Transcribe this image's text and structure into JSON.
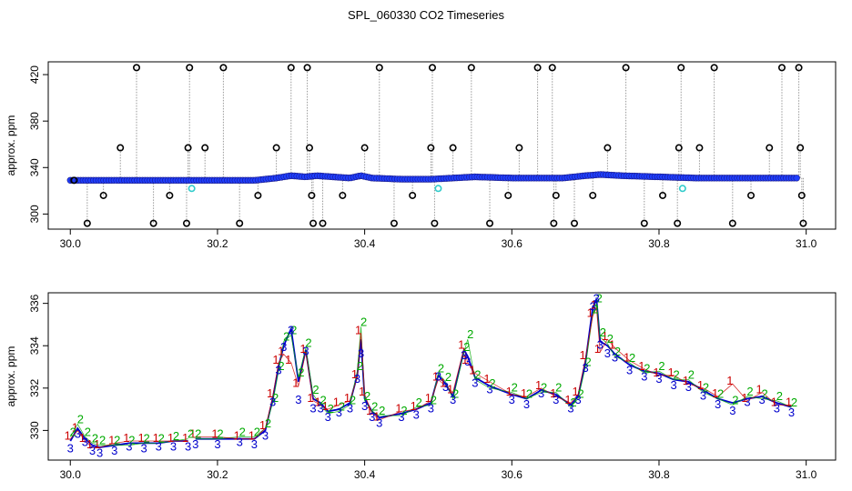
{
  "title": "SPL_060330  CO2 Timeseries",
  "colors": {
    "raw": "#000000",
    "connector": "#999999",
    "fill": "#1f3fff",
    "series1": "#cc0000",
    "series2": "#00aa00",
    "series3": "#0000cc",
    "flag": "#33cccc"
  },
  "chart_data": [
    {
      "type": "scatter",
      "ylabel": "approx. ppm",
      "xlim": [
        29.97,
        31.04
      ],
      "ylim": [
        287,
        431
      ],
      "xticks": [
        "30.0",
        "30.2",
        "30.4",
        "30.6",
        "30.8",
        "31.0"
      ],
      "yticks": [
        "300",
        "340",
        "380",
        "420"
      ],
      "baseline": [
        [
          30.0,
          329
        ],
        [
          30.05,
          329
        ],
        [
          30.1,
          329
        ],
        [
          30.15,
          329
        ],
        [
          30.2,
          329
        ],
        [
          30.25,
          329
        ],
        [
          30.28,
          331
        ],
        [
          30.3,
          333
        ],
        [
          30.32,
          332
        ],
        [
          30.335,
          333
        ],
        [
          30.38,
          331
        ],
        [
          30.395,
          333
        ],
        [
          30.41,
          331
        ],
        [
          30.45,
          330
        ],
        [
          30.49,
          330
        ],
        [
          30.52,
          331
        ],
        [
          30.55,
          332
        ],
        [
          30.6,
          331
        ],
        [
          30.65,
          331
        ],
        [
          30.67,
          331
        ],
        [
          30.7,
          333
        ],
        [
          30.72,
          334
        ],
        [
          30.75,
          333
        ],
        [
          30.8,
          332
        ],
        [
          30.85,
          331
        ],
        [
          30.9,
          331
        ],
        [
          30.95,
          331
        ],
        [
          30.99,
          331
        ]
      ],
      "spikes": [
        [
          30.005,
          329
        ],
        [
          30.023,
          292
        ],
        [
          30.045,
          316
        ],
        [
          30.068,
          357
        ],
        [
          30.09,
          426
        ],
        [
          30.113,
          292
        ],
        [
          30.135,
          316
        ],
        [
          30.158,
          292
        ],
        [
          30.16,
          357
        ],
        [
          30.162,
          426
        ],
        [
          30.183,
          357
        ],
        [
          30.208,
          426
        ],
        [
          30.23,
          292
        ],
        [
          30.255,
          316
        ],
        [
          30.28,
          357
        ],
        [
          30.3,
          426
        ],
        [
          30.322,
          426
        ],
        [
          30.325,
          357
        ],
        [
          30.328,
          316
        ],
        [
          30.33,
          292
        ],
        [
          30.343,
          292
        ],
        [
          30.37,
          316
        ],
        [
          30.4,
          357
        ],
        [
          30.42,
          426
        ],
        [
          30.44,
          292
        ],
        [
          30.465,
          316
        ],
        [
          30.49,
          357
        ],
        [
          30.492,
          426
        ],
        [
          30.495,
          292
        ],
        [
          30.52,
          357
        ],
        [
          30.545,
          426
        ],
        [
          30.57,
          292
        ],
        [
          30.595,
          316
        ],
        [
          30.61,
          357
        ],
        [
          30.635,
          426
        ],
        [
          30.655,
          426
        ],
        [
          30.657,
          292
        ],
        [
          30.66,
          316
        ],
        [
          30.685,
          292
        ],
        [
          30.71,
          316
        ],
        [
          30.73,
          357
        ],
        [
          30.755,
          426
        ],
        [
          30.78,
          292
        ],
        [
          30.805,
          316
        ],
        [
          30.825,
          292
        ],
        [
          30.827,
          357
        ],
        [
          30.83,
          426
        ],
        [
          30.855,
          357
        ],
        [
          30.875,
          426
        ],
        [
          30.9,
          292
        ],
        [
          30.925,
          316
        ],
        [
          30.95,
          357
        ],
        [
          30.967,
          426
        ],
        [
          30.99,
          426
        ],
        [
          30.992,
          357
        ],
        [
          30.994,
          316
        ],
        [
          30.996,
          292
        ]
      ],
      "flags": [
        [
          30.165,
          322
        ],
        [
          30.5,
          322
        ],
        [
          30.832,
          322
        ]
      ]
    },
    {
      "type": "line",
      "ylabel": "approx. ppm",
      "xlim": [
        29.97,
        31.04
      ],
      "ylim": [
        328.6,
        336.5
      ],
      "xticks": [
        "30.0",
        "30.2",
        "30.4",
        "30.6",
        "30.8",
        "31.0"
      ],
      "yticks": [
        "330",
        "332",
        "334",
        "336"
      ],
      "gap": [
        30.165,
        30.168
      ],
      "x": [
        30.0,
        30.01,
        30.02,
        30.03,
        30.04,
        30.06,
        30.08,
        30.1,
        30.12,
        30.14,
        30.16,
        30.17,
        30.2,
        30.23,
        30.25,
        30.265,
        30.275,
        30.283,
        30.29,
        30.3,
        30.31,
        30.32,
        30.33,
        30.34,
        30.35,
        30.365,
        30.38,
        30.39,
        30.395,
        30.4,
        30.41,
        30.42,
        30.45,
        30.47,
        30.49,
        30.5,
        30.51,
        30.52,
        30.535,
        30.54,
        30.55,
        30.57,
        30.6,
        30.62,
        30.64,
        30.66,
        30.68,
        30.69,
        30.7,
        30.71,
        30.715,
        30.72,
        30.73,
        30.74,
        30.76,
        30.78,
        30.8,
        30.82,
        30.84,
        30.86,
        30.88,
        30.9,
        30.92,
        30.94,
        30.96,
        30.98
      ],
      "values": [
        329.5,
        330.1,
        329.6,
        329.3,
        329.2,
        329.3,
        329.4,
        329.4,
        329.4,
        329.5,
        329.5,
        329.6,
        329.6,
        329.6,
        329.6,
        330.0,
        331.5,
        333.0,
        334.0,
        334.8,
        332.3,
        333.8,
        331.5,
        331.3,
        330.9,
        331.0,
        331.3,
        332.6,
        334.3,
        331.5,
        330.9,
        330.6,
        330.8,
        331.0,
        331.3,
        332.6,
        332.2,
        331.6,
        333.8,
        333.5,
        332.5,
        332.1,
        331.7,
        331.5,
        331.9,
        331.7,
        331.2,
        331.6,
        333.2,
        335.8,
        336.2,
        334.2,
        334.0,
        333.6,
        333.1,
        332.8,
        332.7,
        332.4,
        332.3,
        331.9,
        331.5,
        331.3,
        331.5,
        331.6,
        331.3,
        331.1
      ],
      "series": [
        {
          "name": "1",
          "values": [
            329.6,
            330.0,
            329.5,
            329.2,
            329.2,
            329.4,
            329.5,
            329.5,
            329.5,
            329.5,
            329.5,
            329.7,
            329.7,
            329.6,
            329.6,
            330.1,
            331.6,
            333.2,
            333.6,
            333.2,
            332.1,
            333.7,
            331.4,
            331.2,
            331.0,
            331.2,
            331.4,
            332.5,
            334.6,
            331.7,
            330.8,
            330.5,
            330.9,
            331.0,
            331.4,
            332.4,
            332.1,
            331.8,
            333.9,
            333.2,
            332.7,
            332.3,
            331.7,
            331.6,
            332.0,
            331.6,
            331.3,
            331.7,
            333.4,
            335.4,
            335.8,
            333.7,
            334.3,
            333.9,
            333.3,
            332.9,
            332.6,
            332.6,
            332.2,
            332.0,
            331.6,
            332.2,
            331.4,
            331.8,
            331.2,
            331.2
          ]
        },
        {
          "name": "2",
          "values": [
            329.7,
            330.3,
            329.7,
            329.4,
            329.3,
            329.3,
            329.3,
            329.4,
            329.4,
            329.5,
            329.6,
            329.6,
            329.6,
            329.7,
            329.7,
            330.1,
            331.3,
            332.8,
            334.2,
            334.5,
            332.5,
            333.9,
            331.7,
            331.2,
            330.8,
            330.9,
            331.2,
            332.8,
            334.9,
            331.4,
            330.9,
            330.7,
            330.7,
            331.1,
            331.2,
            332.7,
            332.3,
            331.5,
            333.7,
            334.3,
            332.4,
            332.0,
            331.8,
            331.5,
            331.8,
            331.8,
            331.1,
            331.5,
            333.0,
            335.5,
            336.0,
            334.4,
            334.1,
            333.5,
            333.2,
            332.7,
            332.8,
            332.4,
            332.4,
            331.8,
            331.5,
            331.2,
            331.6,
            331.5,
            331.4,
            331.1
          ]
        },
        {
          "name": "3",
          "values": [
            329.3,
            330.0,
            329.6,
            329.2,
            329.1,
            329.2,
            329.4,
            329.3,
            329.4,
            329.4,
            329.4,
            329.5,
            329.5,
            329.6,
            329.5,
            329.9,
            331.5,
            333.0,
            334.1,
            334.9,
            331.6,
            333.9,
            331.2,
            331.2,
            330.8,
            331.0,
            331.2,
            332.6,
            333.8,
            331.3,
            330.8,
            330.5,
            330.8,
            330.9,
            331.2,
            332.7,
            332.2,
            331.6,
            333.7,
            333.4,
            332.4,
            332.1,
            331.6,
            331.4,
            331.9,
            331.6,
            331.2,
            331.6,
            333.1,
            336.0,
            336.4,
            334.2,
            333.8,
            333.6,
            333.0,
            332.7,
            332.6,
            332.3,
            332.2,
            331.8,
            331.4,
            331.1,
            331.5,
            331.6,
            331.2,
            331.0
          ]
        }
      ]
    }
  ]
}
